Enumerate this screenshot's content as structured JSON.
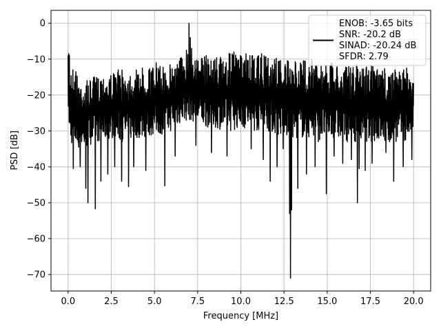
{
  "chart_data": {
    "type": "line",
    "xlabel": "Frequency [MHz]",
    "ylabel": "PSD [dB]",
    "xlim": [
      -0.99,
      20.99
    ],
    "ylim": [
      -74.6,
      3.6
    ],
    "xticks": [
      0.0,
      2.5,
      5.0,
      7.5,
      10.0,
      12.5,
      15.0,
      17.5,
      20.0
    ],
    "xtick_labels": [
      "0.0",
      "2.5",
      "5.0",
      "7.5",
      "10.0",
      "12.5",
      "15.0",
      "17.5",
      "20.0"
    ],
    "yticks": [
      0,
      -10,
      -20,
      -30,
      -40,
      -50,
      -60,
      -70
    ],
    "ytick_labels": [
      "0",
      "−10",
      "−20",
      "−30",
      "−40",
      "−50",
      "−60",
      "−70"
    ],
    "grid": true,
    "legend_position": "top-right",
    "legend_lines": [
      "ENOB: -3.65 bits",
      "SNR: -20.2 dB",
      "SINAD: -20.24 dB",
      "SFDR: 2.79"
    ],
    "series": [
      {
        "color": "#000000",
        "band_upper": [
          [
            0.0,
            -9
          ],
          [
            0.5,
            -14
          ],
          [
            1.0,
            -17
          ],
          [
            1.5,
            -15
          ],
          [
            2.0,
            -14
          ],
          [
            2.5,
            -14
          ],
          [
            3.0,
            -13
          ],
          [
            3.5,
            -13
          ],
          [
            4.0,
            -13
          ],
          [
            4.5,
            -12
          ],
          [
            5.0,
            -12
          ],
          [
            5.5,
            -12
          ],
          [
            6.0,
            -11
          ],
          [
            6.5,
            -9
          ],
          [
            7.0,
            -6
          ],
          [
            7.5,
            -10
          ],
          [
            8.0,
            -9
          ],
          [
            8.5,
            -9
          ],
          [
            9.0,
            -9
          ],
          [
            9.5,
            -8
          ],
          [
            10.0,
            -9
          ],
          [
            10.5,
            -9
          ],
          [
            11.0,
            -9
          ],
          [
            11.5,
            -9
          ],
          [
            12.0,
            -9
          ],
          [
            12.5,
            -10
          ],
          [
            13.0,
            -11
          ],
          [
            13.5,
            -10
          ],
          [
            14.0,
            -10
          ],
          [
            14.5,
            -11
          ],
          [
            15.0,
            -11
          ],
          [
            15.5,
            -11
          ],
          [
            16.0,
            -12
          ],
          [
            16.5,
            -12
          ],
          [
            17.0,
            -12
          ],
          [
            17.5,
            -11
          ],
          [
            18.0,
            -13
          ],
          [
            18.5,
            -12
          ],
          [
            19.0,
            -13
          ],
          [
            19.5,
            -13
          ],
          [
            20.0,
            -14
          ]
        ],
        "band_lower": [
          [
            0.0,
            -33
          ],
          [
            0.5,
            -35
          ],
          [
            1.0,
            -35
          ],
          [
            1.5,
            -33
          ],
          [
            2.0,
            -33
          ],
          [
            2.5,
            -32
          ],
          [
            3.0,
            -33
          ],
          [
            3.5,
            -33
          ],
          [
            4.0,
            -32
          ],
          [
            4.5,
            -32
          ],
          [
            5.0,
            -31
          ],
          [
            5.5,
            -31
          ],
          [
            6.0,
            -30
          ],
          [
            6.5,
            -28
          ],
          [
            7.0,
            -27
          ],
          [
            7.5,
            -28
          ],
          [
            8.0,
            -29
          ],
          [
            8.5,
            -29
          ],
          [
            9.0,
            -30
          ],
          [
            9.5,
            -30
          ],
          [
            10.0,
            -29
          ],
          [
            10.5,
            -30
          ],
          [
            11.0,
            -30
          ],
          [
            11.5,
            -30
          ],
          [
            12.0,
            -31
          ],
          [
            12.5,
            -32
          ],
          [
            13.0,
            -32
          ],
          [
            13.5,
            -32
          ],
          [
            14.0,
            -32
          ],
          [
            14.5,
            -33
          ],
          [
            15.0,
            -32
          ],
          [
            15.5,
            -32
          ],
          [
            16.0,
            -33
          ],
          [
            16.5,
            -33
          ],
          [
            17.0,
            -33
          ],
          [
            17.5,
            -33
          ],
          [
            18.0,
            -33
          ],
          [
            18.5,
            -34
          ],
          [
            19.0,
            -33
          ],
          [
            19.5,
            -33
          ],
          [
            20.0,
            -30
          ]
        ],
        "spikes_up": [
          [
            0.04,
            -8.5
          ],
          [
            0.07,
            -9
          ],
          [
            0.45,
            -13.5
          ],
          [
            1.1,
            -16
          ],
          [
            1.5,
            -15
          ],
          [
            2.9,
            -13
          ],
          [
            4.3,
            -12.5
          ],
          [
            5.1,
            -11
          ],
          [
            6.6,
            -10
          ],
          [
            6.85,
            -7.5
          ],
          [
            7.0,
            0
          ],
          [
            7.08,
            -4
          ],
          [
            7.15,
            -7
          ],
          [
            8.0,
            -9
          ],
          [
            9.6,
            -8
          ],
          [
            10.3,
            -8.5
          ],
          [
            11.2,
            -8.5
          ],
          [
            12.1,
            -9
          ],
          [
            14.1,
            -10
          ],
          [
            16.7,
            -11.5
          ],
          [
            17.6,
            -11
          ],
          [
            19.6,
            -12.5
          ]
        ],
        "spikes_down": [
          [
            0.3,
            -40.5
          ],
          [
            0.7,
            -40
          ],
          [
            1.02,
            -46
          ],
          [
            1.15,
            -50
          ],
          [
            1.58,
            -51.7
          ],
          [
            1.9,
            -44
          ],
          [
            2.3,
            -42
          ],
          [
            2.7,
            -40
          ],
          [
            3.1,
            -44
          ],
          [
            3.5,
            -45.5
          ],
          [
            3.8,
            -40
          ],
          [
            4.5,
            -41
          ],
          [
            5.6,
            -45.3
          ],
          [
            6.2,
            -37
          ],
          [
            7.4,
            -34
          ],
          [
            8.3,
            -36
          ],
          [
            9.2,
            -37
          ],
          [
            10.6,
            -35
          ],
          [
            11.3,
            -38
          ],
          [
            11.7,
            -44
          ],
          [
            12.1,
            -40
          ],
          [
            12.45,
            -35
          ],
          [
            12.82,
            -53
          ],
          [
            12.88,
            -71
          ],
          [
            12.94,
            -52
          ],
          [
            13.3,
            -46
          ],
          [
            13.8,
            -42
          ],
          [
            14.3,
            -40
          ],
          [
            14.95,
            -47.5
          ],
          [
            15.4,
            -37
          ],
          [
            15.9,
            -39
          ],
          [
            16.4,
            -38
          ],
          [
            16.75,
            -50
          ],
          [
            16.85,
            -40.5
          ],
          [
            17.2,
            -41
          ],
          [
            17.6,
            -39
          ],
          [
            18.4,
            -36
          ],
          [
            18.85,
            -44
          ],
          [
            19.4,
            -40
          ],
          [
            19.9,
            -38
          ]
        ]
      }
    ]
  }
}
